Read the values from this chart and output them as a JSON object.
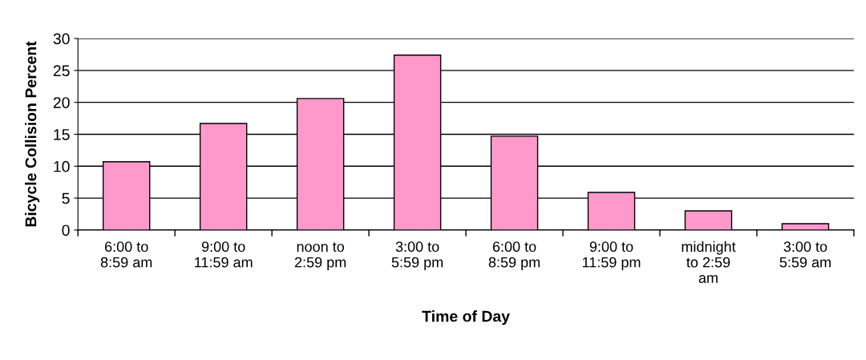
{
  "chart_data": {
    "type": "bar",
    "xlabel": "Time of Day",
    "ylabel": "Bicycle Collision Percent",
    "categories": [
      "6:00 to\n8:59 am",
      "9:00 to\n11:59 am",
      "noon to\n2:59 pm",
      "3:00 to\n5:59 pm",
      "6:00 to\n8:59 pm",
      "9:00 to\n11:59 pm",
      "midnight\nto 2:59\nam",
      "3:00 to\n5:59 am"
    ],
    "values": [
      10.7,
      16.7,
      20.6,
      27.4,
      14.7,
      5.9,
      3.0,
      1.0
    ],
    "color": "#ff99cc",
    "ylim": [
      0,
      30
    ],
    "yticks": [
      0,
      5,
      10,
      15,
      20,
      25,
      30
    ],
    "grid": "y"
  }
}
